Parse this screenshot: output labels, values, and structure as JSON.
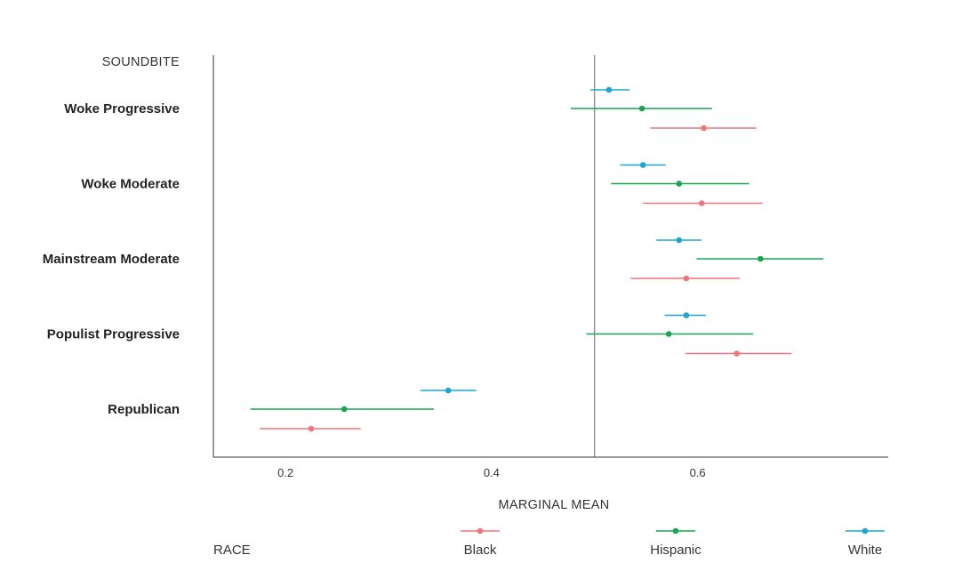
{
  "chart_data": {
    "type": "forest",
    "y_title": "SOUNDBITE",
    "x_title": "MARGINAL MEAN",
    "categories": [
      "Woke Progressive",
      "Woke Moderate",
      "Mainstream Moderate",
      "Populist Progressive",
      "Republican"
    ],
    "xlim": [
      0.13,
      0.785
    ],
    "x_ticks": [
      0.2,
      0.4,
      0.6
    ],
    "x_tick_labels": [
      "0.2",
      "0.4",
      "0.6"
    ],
    "reference_line": 0.5,
    "legend_title": "RACE",
    "series": [
      {
        "name": "White",
        "color": "#1aa6d0",
        "estimates": [
          0.514,
          0.547,
          0.582,
          0.589,
          0.358
        ],
        "lower": [
          0.496,
          0.525,
          0.56,
          0.568,
          0.331
        ],
        "upper": [
          0.534,
          0.569,
          0.604,
          0.608,
          0.385
        ]
      },
      {
        "name": "Hispanic",
        "color": "#19a651",
        "estimates": [
          0.546,
          0.582,
          0.661,
          0.572,
          0.257
        ],
        "lower": [
          0.477,
          0.516,
          0.599,
          0.492,
          0.166
        ],
        "upper": [
          0.614,
          0.65,
          0.722,
          0.654,
          0.344
        ]
      },
      {
        "name": "Black",
        "color": "#f0757a",
        "estimates": [
          0.606,
          0.604,
          0.589,
          0.638,
          0.225
        ],
        "lower": [
          0.554,
          0.547,
          0.535,
          0.588,
          0.175
        ],
        "upper": [
          0.657,
          0.663,
          0.641,
          0.691,
          0.273
        ]
      }
    ]
  }
}
